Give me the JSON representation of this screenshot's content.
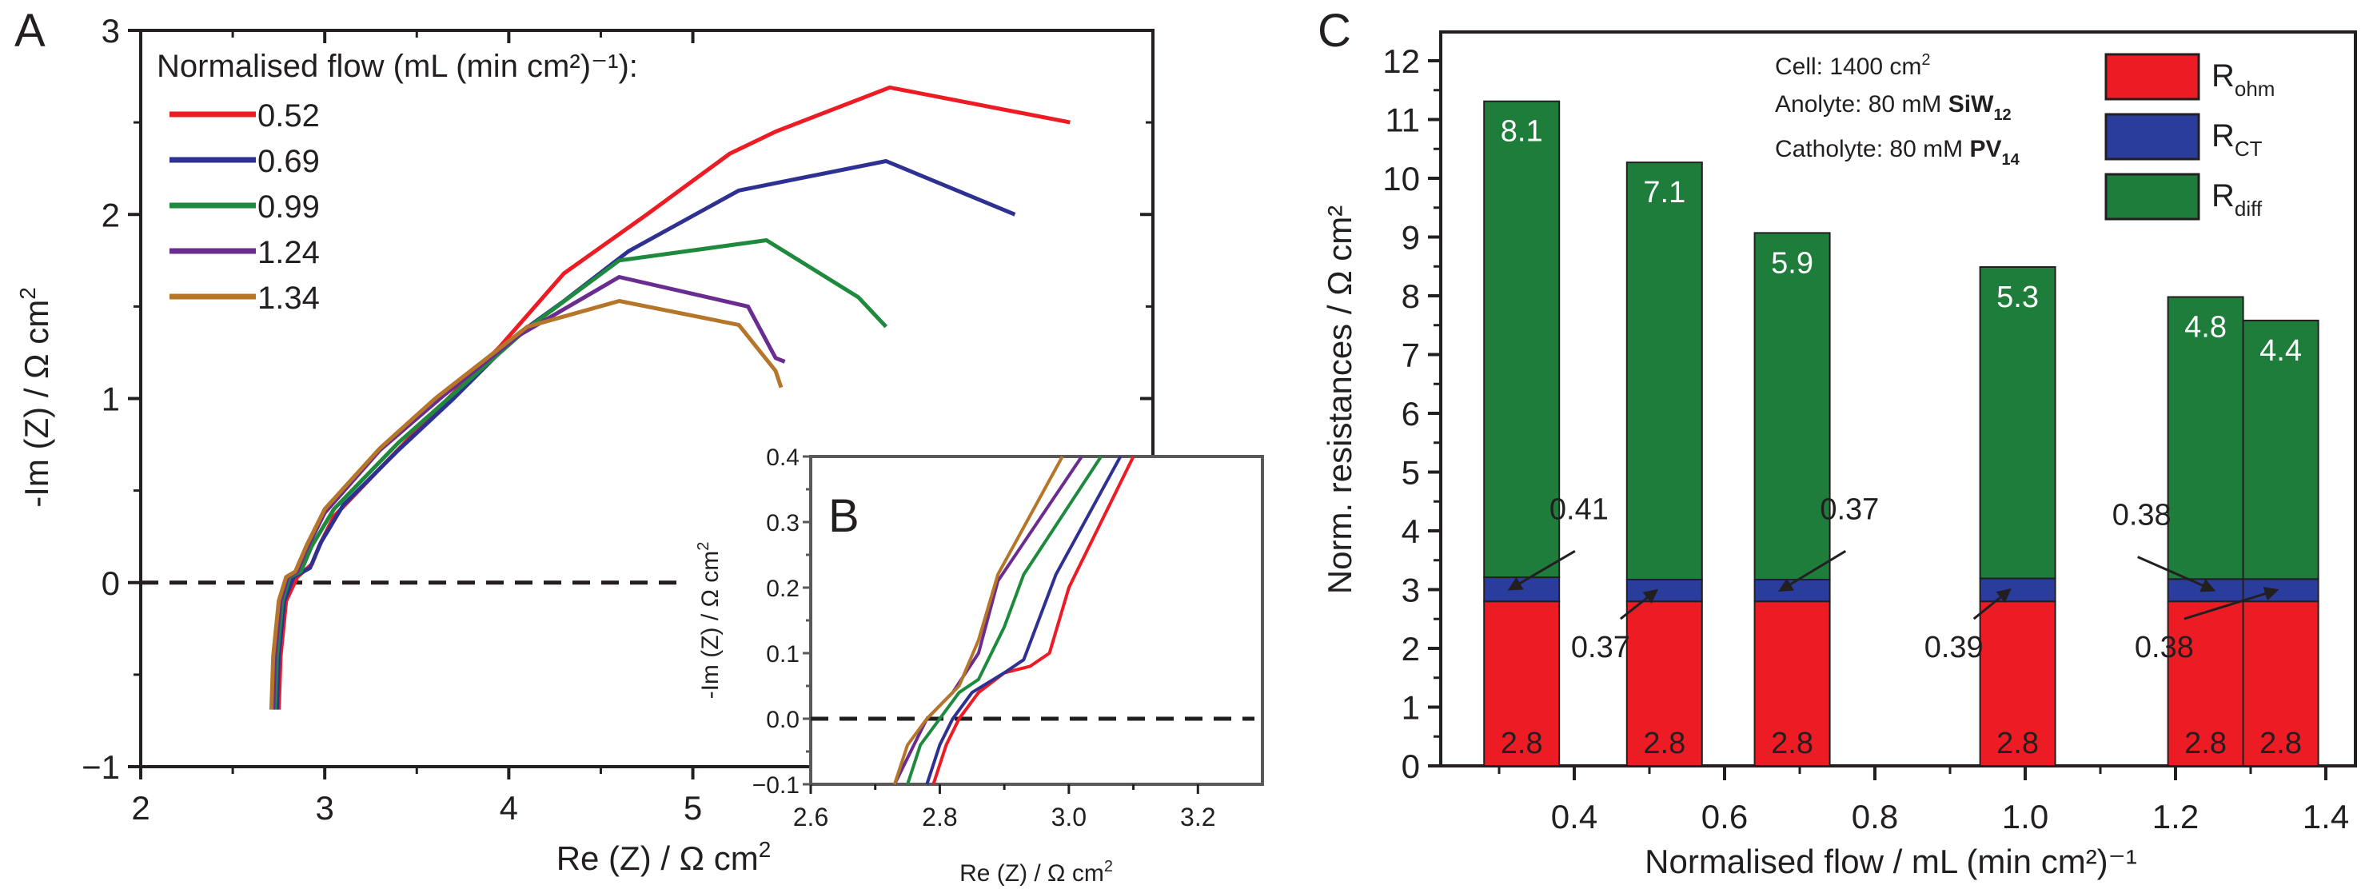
{
  "figure": {
    "panel_labels": {
      "a": "A",
      "b": "B",
      "c": "C"
    }
  },
  "chart_data": [
    {
      "id": "A",
      "type": "line",
      "title": "",
      "xlabel": "Re (Z) / Ω cm",
      "xlabel_sup": "2",
      "ylabel": "-Im (Z) / Ω cm",
      "ylabel_sup": "2",
      "xlim": [
        2,
        7.5
      ],
      "ylim": [
        -1,
        3
      ],
      "xticks": [
        2,
        3,
        4,
        5
      ],
      "xtick_labels": [
        "2",
        "3",
        "4",
        "5"
      ],
      "yticks": [
        -1,
        0,
        1,
        2,
        3
      ],
      "ytick_labels": [
        "−1",
        "0",
        "1",
        "2",
        "3"
      ],
      "reference_line": {
        "y": 0,
        "style": "dashed"
      },
      "legend": {
        "title": "Normalised flow (mL (min cm²)⁻¹):",
        "placement": "top-left"
      },
      "series": [
        {
          "name": "0.52",
          "color": "#ed1c24",
          "points": [
            [
              2.75,
              -0.69
            ],
            [
              2.76,
              -0.4
            ],
            [
              2.79,
              -0.1
            ],
            [
              2.85,
              0.03
            ],
            [
              2.93,
              0.1
            ],
            [
              2.97,
              0.2
            ],
            [
              3.05,
              0.36
            ],
            [
              3.3,
              0.62
            ],
            [
              3.6,
              0.93
            ],
            [
              3.95,
              1.28
            ],
            [
              4.3,
              1.68
            ],
            [
              4.75,
              2.0
            ],
            [
              5.2,
              2.33
            ],
            [
              5.45,
              2.45
            ],
            [
              6.07,
              2.69
            ],
            [
              7.05,
              2.5
            ]
          ]
        },
        {
          "name": "0.69",
          "color": "#2e3192",
          "points": [
            [
              2.74,
              -0.69
            ],
            [
              2.75,
              -0.4
            ],
            [
              2.78,
              -0.1
            ],
            [
              2.83,
              0.03
            ],
            [
              2.92,
              0.08
            ],
            [
              2.98,
              0.22
            ],
            [
              3.1,
              0.42
            ],
            [
              3.4,
              0.72
            ],
            [
              3.7,
              1.0
            ],
            [
              4.05,
              1.35
            ],
            [
              4.3,
              1.53
            ],
            [
              4.65,
              1.8
            ],
            [
              5.25,
              2.13
            ],
            [
              6.05,
              2.29
            ],
            [
              6.75,
              2.0
            ]
          ]
        },
        {
          "name": "0.99",
          "color": "#1e8a3e",
          "points": [
            [
              2.73,
              -0.69
            ],
            [
              2.74,
              -0.4
            ],
            [
              2.77,
              -0.1
            ],
            [
              2.81,
              0.03
            ],
            [
              2.87,
              0.06
            ],
            [
              2.93,
              0.2
            ],
            [
              3.05,
              0.4
            ],
            [
              3.4,
              0.76
            ],
            [
              3.75,
              1.07
            ],
            [
              4.1,
              1.38
            ],
            [
              4.6,
              1.75
            ],
            [
              5.4,
              1.86
            ],
            [
              5.9,
              1.55
            ],
            [
              6.05,
              1.39
            ]
          ]
        },
        {
          "name": "1.24",
          "color": "#6a2c91",
          "points": [
            [
              2.72,
              -0.69
            ],
            [
              2.73,
              -0.4
            ],
            [
              2.76,
              -0.1
            ],
            [
              2.8,
              0.03
            ],
            [
              2.85,
              0.06
            ],
            [
              2.9,
              0.18
            ],
            [
              3.0,
              0.38
            ],
            [
              3.3,
              0.72
            ],
            [
              3.65,
              1.02
            ],
            [
              4.05,
              1.34
            ],
            [
              4.6,
              1.66
            ],
            [
              5.3,
              1.5
            ],
            [
              5.45,
              1.22
            ],
            [
              5.5,
              1.2
            ]
          ]
        },
        {
          "name": "1.34",
          "color": "#b5762a",
          "points": [
            [
              2.71,
              -0.69
            ],
            [
              2.72,
              -0.4
            ],
            [
              2.75,
              -0.1
            ],
            [
              2.79,
              0.03
            ],
            [
              2.84,
              0.06
            ],
            [
              2.9,
              0.2
            ],
            [
              3.0,
              0.4
            ],
            [
              3.3,
              0.73
            ],
            [
              3.6,
              1.0
            ],
            [
              4.1,
              1.39
            ],
            [
              4.6,
              1.53
            ],
            [
              5.25,
              1.4
            ],
            [
              5.45,
              1.15
            ],
            [
              5.48,
              1.06
            ]
          ]
        }
      ]
    },
    {
      "id": "B",
      "type": "line",
      "title": "",
      "xlabel": "Re (Z) / Ω cm",
      "xlabel_sup": "2",
      "ylabel": "-Im (Z) / Ω cm",
      "ylabel_sup": "2",
      "xlim": [
        2.6,
        3.3
      ],
      "ylim": [
        -0.1,
        0.4
      ],
      "xticks": [
        2.6,
        2.8,
        3.0,
        3.2
      ],
      "xtick_labels": [
        "2.6",
        "2.8",
        "3.0",
        "3.2"
      ],
      "yticks": [
        -0.1,
        0.0,
        0.1,
        0.2,
        0.3,
        0.4
      ],
      "ytick_labels": [
        "−0.1",
        "0.0",
        "0.1",
        "0.2",
        "0.3",
        "0.4"
      ],
      "reference_line": {
        "y": 0,
        "style": "dashed"
      },
      "series": [
        {
          "name": "0.52",
          "color": "#ed1c24",
          "points": [
            [
              2.79,
              -0.1
            ],
            [
              2.81,
              -0.04
            ],
            [
              2.83,
              0.0
            ],
            [
              2.86,
              0.04
            ],
            [
              2.9,
              0.07
            ],
            [
              2.94,
              0.08
            ],
            [
              2.97,
              0.1
            ],
            [
              3.0,
              0.2
            ],
            [
              3.01,
              0.22
            ],
            [
              3.1,
              0.4
            ]
          ]
        },
        {
          "name": "0.69",
          "color": "#2e3192",
          "points": [
            [
              2.78,
              -0.1
            ],
            [
              2.8,
              -0.04
            ],
            [
              2.82,
              0.0
            ],
            [
              2.85,
              0.04
            ],
            [
              2.9,
              0.07
            ],
            [
              2.93,
              0.09
            ],
            [
              2.98,
              0.22
            ],
            [
              3.08,
              0.4
            ]
          ]
        },
        {
          "name": "0.99",
          "color": "#1e8a3e",
          "points": [
            [
              2.75,
              -0.1
            ],
            [
              2.77,
              -0.04
            ],
            [
              2.8,
              0.0
            ],
            [
              2.83,
              0.04
            ],
            [
              2.86,
              0.06
            ],
            [
              2.9,
              0.14
            ],
            [
              2.93,
              0.22
            ],
            [
              3.05,
              0.4
            ]
          ]
        },
        {
          "name": "1.24",
          "color": "#6a2c91",
          "points": [
            [
              2.73,
              -0.1
            ],
            [
              2.76,
              -0.04
            ],
            [
              2.78,
              0.0
            ],
            [
              2.82,
              0.04
            ],
            [
              2.86,
              0.1
            ],
            [
              2.89,
              0.21
            ],
            [
              3.02,
              0.4
            ]
          ]
        },
        {
          "name": "1.34",
          "color": "#b5762a",
          "points": [
            [
              2.73,
              -0.1
            ],
            [
              2.75,
              -0.04
            ],
            [
              2.78,
              0.0
            ],
            [
              2.83,
              0.05
            ],
            [
              2.86,
              0.12
            ],
            [
              2.89,
              0.22
            ],
            [
              2.99,
              0.4
            ]
          ]
        }
      ]
    },
    {
      "id": "C",
      "type": "bar",
      "stacked": true,
      "title": "",
      "xlabel": "Normalised flow / mL (min cm²)⁻¹",
      "ylabel": "Norm. resistances / Ω cm²",
      "xlim": [
        0.2,
        1.45
      ],
      "ylim": [
        0,
        12.5
      ],
      "xticks": [
        0.4,
        0.6,
        0.8,
        1.0,
        1.2,
        1.4
      ],
      "xtick_labels": [
        "0.4",
        "0.6",
        "0.8",
        "1.0",
        "1.2",
        "1.4"
      ],
      "yticks": [
        0,
        1,
        2,
        3,
        4,
        5,
        6,
        7,
        8,
        9,
        10,
        11,
        12
      ],
      "ytick_labels": [
        "0",
        "1",
        "2",
        "3",
        "4",
        "5",
        "6",
        "7",
        "8",
        "9",
        "10",
        "11",
        "12"
      ],
      "bar_width": 0.1,
      "x": [
        0.33,
        0.52,
        0.69,
        0.99,
        1.24,
        1.34
      ],
      "series": [
        {
          "name": "R_ohm",
          "label_main": "R",
          "label_sub": "ohm",
          "color": "#ed1c24",
          "values": [
            2.8,
            2.8,
            2.8,
            2.8,
            2.8,
            2.8
          ],
          "value_labels": [
            "2.8",
            "2.8",
            "2.8",
            "2.8",
            "2.8",
            "2.8"
          ]
        },
        {
          "name": "R_CT",
          "label_main": "R",
          "label_sub": "CT",
          "color": "#2b3d9c",
          "values": [
            0.41,
            0.37,
            0.37,
            0.39,
            0.38,
            0.38
          ],
          "value_labels": [
            "0.41",
            "0.37",
            "0.37",
            "0.39",
            "0.38",
            "0.38"
          ]
        },
        {
          "name": "R_diff",
          "label_main": "R",
          "label_sub": "diff",
          "color": "#1f7d3c",
          "values": [
            8.1,
            7.1,
            5.9,
            5.3,
            4.8,
            4.4
          ],
          "value_labels": [
            "8.1",
            "7.1",
            "5.9",
            "5.3",
            "4.8",
            "4.4"
          ]
        }
      ],
      "legend": {
        "placement": "top-right"
      },
      "annotation_text": {
        "cell": "Cell: 1400 cm",
        "cell_sup": "2",
        "anolyte_prefix": "Anolyte: 80 mM ",
        "anolyte_bold": "SiW",
        "anolyte_sub": "12",
        "catholyte_prefix": "Catholyte: 80 mM ",
        "catholyte_bold": "PV",
        "catholyte_sub": "14"
      },
      "rct_callouts": [
        {
          "bar": 0,
          "text": "0.41",
          "side": "above"
        },
        {
          "bar": 1,
          "text": "0.37",
          "side": "below"
        },
        {
          "bar": 2,
          "text": "0.37",
          "side": "above"
        },
        {
          "bar": 3,
          "text": "0.39",
          "side": "below"
        },
        {
          "bar": 4,
          "text": "0.38",
          "side": "above"
        },
        {
          "bar": 5,
          "text": "0.38",
          "side": "below"
        }
      ]
    }
  ]
}
